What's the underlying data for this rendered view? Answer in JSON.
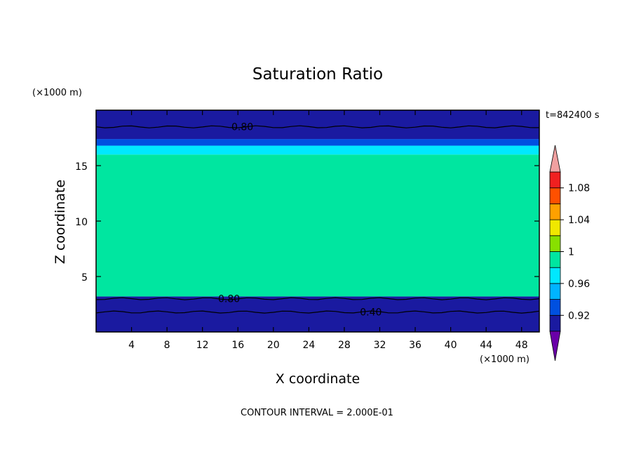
{
  "chart_data": {
    "type": "heatmap",
    "title": "Saturation Ratio",
    "xlabel": "X coordinate",
    "ylabel": "Z coordinate",
    "x_units": "(×1000 m)",
    "y_units": "(×1000 m)",
    "time_label": "t=842400 s",
    "footer": "CONTOUR INTERVAL = 2.000E-01",
    "xlim": [
      0,
      50
    ],
    "ylim": [
      0,
      20
    ],
    "x_ticks": [
      4,
      8,
      12,
      16,
      20,
      24,
      28,
      32,
      36,
      40,
      44,
      48
    ],
    "y_ticks": [
      5,
      10,
      15
    ],
    "colorbar": {
      "levels": [
        0.9,
        0.92,
        0.94,
        0.96,
        0.98,
        1.0,
        1.02,
        1.04,
        1.06,
        1.08,
        1.1
      ],
      "labels": [
        "0.92",
        "0.96",
        "1",
        "1.04",
        "1.08"
      ],
      "label_values": [
        0.92,
        0.96,
        1.0,
        1.04,
        1.08
      ],
      "colors": [
        "#6a00a8",
        "#1a1aa0",
        "#0050e0",
        "#00b4ff",
        "#00e8ff",
        "#00e6a0",
        "#88e000",
        "#f0e800",
        "#ffa000",
        "#ff5000",
        "#f02020",
        "#f0a0a0"
      ]
    },
    "contour_lines": [
      {
        "value": 0.8,
        "label": "0.80",
        "z": 18.5
      },
      {
        "value": 0.8,
        "label": "0.80",
        "z": 3.0
      },
      {
        "value": 0.4,
        "label": "0.40",
        "z": 1.8
      }
    ],
    "bands": [
      {
        "z_from": 0,
        "z_to": 3.2,
        "level": 0.9
      },
      {
        "z_from": 3.2,
        "z_to": 16.0,
        "level": 0.99
      },
      {
        "z_from": 16.0,
        "z_to": 16.8,
        "level": 0.96
      },
      {
        "z_from": 16.8,
        "z_to": 17.4,
        "level": 0.93
      },
      {
        "z_from": 17.4,
        "z_to": 20,
        "level": 0.9
      }
    ]
  }
}
